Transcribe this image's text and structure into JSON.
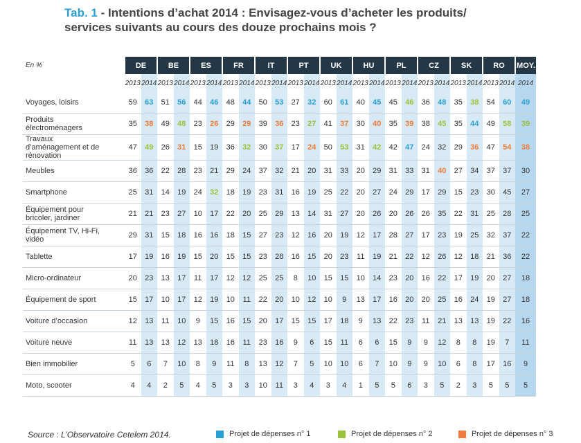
{
  "title": {
    "prefix": "Tab. 1",
    "line1": "- Intentions d’achat 2014 : Envisagez-vous d’acheter les produits/",
    "line2": "services suivants au cours des douze prochains mois ?"
  },
  "table": {
    "unit": "En %",
    "countries": [
      "DE",
      "BE",
      "ES",
      "FR",
      "IT",
      "PT",
      "UK",
      "HU",
      "PL",
      "CZ",
      "SK",
      "RO"
    ],
    "average": "MOY.",
    "years": [
      "2013",
      "2014"
    ],
    "rows": [
      {
        "label": "Voyages, loisirs",
        "values": [
          59,
          63,
          51,
          56,
          44,
          46,
          48,
          44,
          50,
          53,
          27,
          32,
          60,
          61,
          40,
          45,
          45,
          46,
          36,
          48,
          35,
          38,
          54,
          60,
          49
        ],
        "highlight": [
          1,
          1,
          1,
          1,
          1,
          1,
          1,
          1,
          2,
          1,
          2,
          1,
          1
        ]
      },
      {
        "label": "Produits électroménagers",
        "values": [
          35,
          38,
          49,
          48,
          23,
          26,
          29,
          29,
          39,
          36,
          23,
          27,
          41,
          37,
          30,
          40,
          35,
          39,
          38,
          45,
          35,
          44,
          49,
          58,
          39
        ],
        "highlight": [
          3,
          2,
          3,
          3,
          3,
          2,
          3,
          3,
          3,
          2,
          1,
          2,
          2
        ]
      },
      {
        "label": "Travaux d’aménagement et de rénovation",
        "values": [
          47,
          49,
          26,
          31,
          15,
          19,
          36,
          32,
          30,
          37,
          17,
          24,
          50,
          53,
          31,
          42,
          42,
          47,
          24,
          32,
          29,
          36,
          47,
          54,
          38
        ],
        "highlight": [
          2,
          3,
          0,
          2,
          2,
          3,
          2,
          2,
          1,
          0,
          3,
          3,
          3
        ]
      },
      {
        "label": "Meubles",
        "values": [
          36,
          36,
          22,
          28,
          23,
          21,
          29,
          24,
          37,
          32,
          21,
          20,
          31,
          33,
          20,
          29,
          31,
          33,
          31,
          40,
          27,
          34,
          37,
          37,
          30
        ],
        "highlight": [
          0,
          0,
          0,
          0,
          0,
          0,
          0,
          0,
          0,
          3,
          0,
          0,
          0
        ]
      },
      {
        "label": "Smartphone",
        "values": [
          25,
          31,
          14,
          19,
          24,
          32,
          18,
          19,
          23,
          31,
          16,
          19,
          25,
          22,
          20,
          27,
          24,
          29,
          17,
          29,
          15,
          23,
          30,
          45,
          27
        ],
        "highlight": [
          0,
          0,
          2,
          0,
          0,
          0,
          0,
          0,
          0,
          0,
          0,
          0,
          0
        ]
      },
      {
        "label": "Équipement pour bricoler, jardiner",
        "values": [
          21,
          21,
          23,
          27,
          10,
          17,
          22,
          20,
          25,
          29,
          13,
          14,
          31,
          27,
          20,
          26,
          20,
          26,
          26,
          35,
          22,
          31,
          25,
          28,
          25
        ],
        "highlight": [
          0,
          0,
          0,
          0,
          0,
          0,
          0,
          0,
          0,
          0,
          0,
          0,
          0
        ]
      },
      {
        "label": "Équipement TV, Hi-Fi, vidéo",
        "values": [
          29,
          31,
          15,
          18,
          16,
          16,
          18,
          15,
          27,
          23,
          12,
          16,
          20,
          19,
          12,
          17,
          28,
          27,
          17,
          23,
          19,
          25,
          32,
          37,
          22
        ],
        "highlight": [
          0,
          0,
          0,
          0,
          0,
          0,
          0,
          0,
          0,
          0,
          0,
          0,
          0
        ]
      },
      {
        "label": "Tablette",
        "values": [
          17,
          19,
          16,
          19,
          15,
          20,
          15,
          15,
          23,
          28,
          16,
          15,
          20,
          23,
          11,
          19,
          21,
          22,
          12,
          26,
          12,
          18,
          21,
          36,
          22
        ],
        "highlight": [
          0,
          0,
          0,
          0,
          0,
          0,
          0,
          0,
          0,
          0,
          0,
          0,
          0
        ]
      },
      {
        "label": "Micro-ordinateur",
        "values": [
          20,
          23,
          13,
          17,
          11,
          17,
          12,
          12,
          25,
          25,
          8,
          10,
          15,
          15,
          10,
          14,
          23,
          20,
          16,
          22,
          17,
          19,
          20,
          27,
          18
        ],
        "highlight": [
          0,
          0,
          0,
          0,
          0,
          0,
          0,
          0,
          0,
          0,
          0,
          0,
          0
        ]
      },
      {
        "label": "Équipement de sport",
        "values": [
          15,
          17,
          10,
          17,
          12,
          19,
          10,
          11,
          22,
          20,
          10,
          12,
          10,
          9,
          13,
          17,
          16,
          20,
          20,
          25,
          16,
          24,
          19,
          27,
          18
        ],
        "highlight": [
          0,
          0,
          0,
          0,
          0,
          0,
          0,
          0,
          0,
          0,
          0,
          0,
          0
        ]
      },
      {
        "label": "Voiture d’occasion",
        "values": [
          12,
          13,
          11,
          10,
          9,
          15,
          16,
          15,
          20,
          17,
          15,
          15,
          17,
          18,
          9,
          13,
          22,
          23,
          11,
          21,
          13,
          13,
          19,
          22,
          16
        ],
        "highlight": [
          0,
          0,
          0,
          0,
          0,
          0,
          0,
          0,
          0,
          0,
          0,
          0,
          0
        ]
      },
      {
        "label": "Voiture neuve",
        "values": [
          11,
          13,
          13,
          12,
          13,
          18,
          16,
          11,
          23,
          16,
          9,
          6,
          15,
          11,
          6,
          6,
          15,
          9,
          9,
          12,
          8,
          8,
          19,
          7,
          11
        ],
        "highlight": [
          0,
          0,
          0,
          0,
          0,
          0,
          0,
          0,
          0,
          0,
          0,
          0,
          0
        ]
      },
      {
        "label": "Bien immobilier",
        "values": [
          5,
          6,
          7,
          10,
          8,
          9,
          11,
          8,
          13,
          12,
          7,
          5,
          10,
          10,
          6,
          7,
          10,
          9,
          9,
          10,
          6,
          8,
          17,
          16,
          9
        ],
        "highlight": [
          0,
          0,
          0,
          0,
          0,
          0,
          0,
          0,
          0,
          0,
          0,
          0,
          0
        ]
      },
      {
        "label": "Moto, scooter",
        "values": [
          4,
          4,
          2,
          5,
          4,
          5,
          3,
          3,
          10,
          11,
          3,
          4,
          3,
          4,
          1,
          5,
          5,
          6,
          3,
          5,
          2,
          3,
          5,
          5,
          5
        ],
        "highlight": [
          0,
          0,
          0,
          0,
          0,
          0,
          0,
          0,
          0,
          0,
          0,
          0,
          0
        ]
      }
    ]
  },
  "source": "Source : L’Observatoire Cetelem 2014.",
  "legend": [
    {
      "label": "Projet de dépenses n° 1",
      "color": "#2a9fd6"
    },
    {
      "label": "Projet de dépenses n° 2",
      "color": "#9bc23c"
    },
    {
      "label": "Projet de dépenses n° 3",
      "color": "#f07b3a"
    }
  ]
}
